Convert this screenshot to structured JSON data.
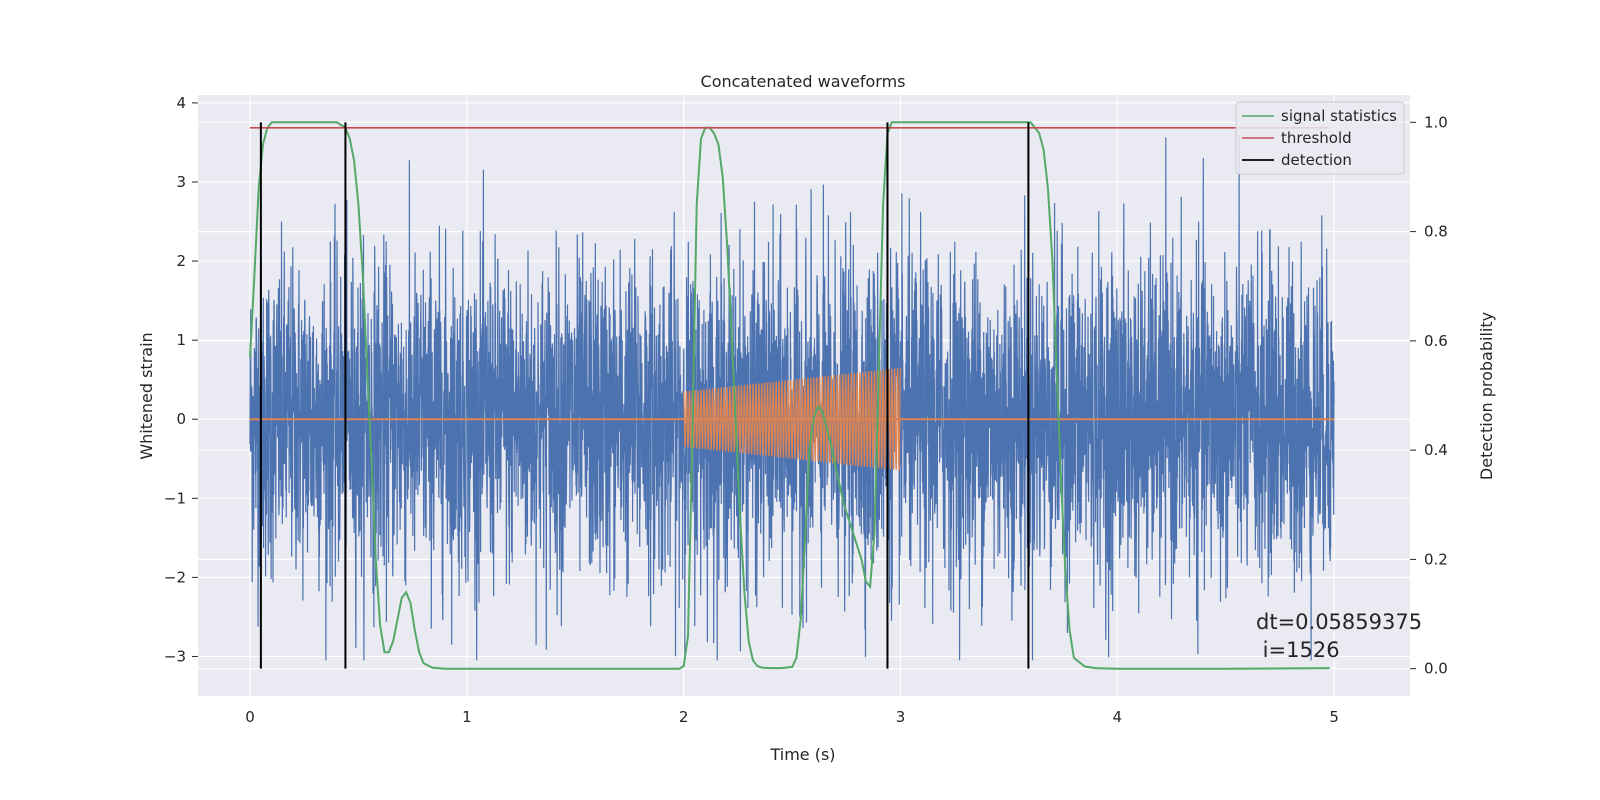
{
  "chart_data": {
    "type": "line",
    "title": "Concatenated waveforms",
    "xlabel": "Time (s)",
    "ylabel": "Whitened strain",
    "ylabel_right": "Detection probability",
    "xlim": [
      -0.24,
      5.35
    ],
    "ylim": [
      -3.5,
      4.1
    ],
    "ylim_right": [
      -0.05,
      1.05
    ],
    "x_ticks": [
      0,
      1,
      2,
      3,
      4,
      5
    ],
    "x_tick_labels": [
      "0",
      "1",
      "2",
      "3",
      "4",
      "5"
    ],
    "y_ticks": [
      -3,
      -2,
      -1,
      0,
      1,
      2,
      3,
      4
    ],
    "y_tick_labels": [
      "−3",
      "−2",
      "−1",
      "0",
      "1",
      "2",
      "3",
      "4"
    ],
    "y2_ticks": [
      0.0,
      0.2,
      0.4,
      0.6,
      0.8,
      1.0
    ],
    "y2_tick_labels": [
      "0.0",
      "0.2",
      "0.4",
      "0.6",
      "0.8",
      "1.0"
    ],
    "grid": true,
    "legend_position": "upper-right",
    "colors": {
      "background": "#EAEAF2",
      "grid": "#FFFFFF",
      "strain": "#4C72B0",
      "injection": "#DD8452",
      "signal": "#55A868",
      "threshold": "#C44E52",
      "detection": "#000000"
    },
    "series": [
      {
        "name": "",
        "axis": "left",
        "kind": "noise",
        "x_range": [
          0.0,
          5.0
        ],
        "samples": 5000,
        "std": 1.0,
        "ylim_clip": [
          -3.05,
          3.8
        ]
      },
      {
        "name": "",
        "axis": "left",
        "kind": "chirp",
        "x_range": [
          2.0,
          3.0
        ],
        "amplitude_start": 0.35,
        "amplitude_end": 0.65,
        "cycles": 75,
        "baseline_x_range": [
          0.0,
          5.0
        ],
        "baseline_y": 0.0
      },
      {
        "name": "signal statistics",
        "axis": "right",
        "x": [
          0.0,
          0.02,
          0.04,
          0.06,
          0.08,
          0.1,
          0.14,
          0.2,
          0.3,
          0.4,
          0.44,
          0.46,
          0.48,
          0.5,
          0.52,
          0.54,
          0.56,
          0.58,
          0.6,
          0.62,
          0.64,
          0.66,
          0.68,
          0.7,
          0.72,
          0.74,
          0.76,
          0.78,
          0.8,
          0.84,
          0.9,
          1.0,
          1.5,
          1.98,
          2.0,
          2.02,
          2.04,
          2.06,
          2.08,
          2.1,
          2.12,
          2.14,
          2.16,
          2.18,
          2.2,
          2.22,
          2.24,
          2.26,
          2.28,
          2.3,
          2.32,
          2.34,
          2.36,
          2.4,
          2.45,
          2.5,
          2.52,
          2.54,
          2.56,
          2.58,
          2.6,
          2.62,
          2.64,
          2.66,
          2.68,
          2.7,
          2.74,
          2.78,
          2.82,
          2.84,
          2.86,
          2.88,
          2.9,
          2.92,
          2.94,
          2.96,
          3.0,
          3.2,
          3.4,
          3.55,
          3.6,
          3.62,
          3.64,
          3.66,
          3.68,
          3.7,
          3.72,
          3.74,
          3.76,
          3.78,
          3.8,
          3.85,
          3.9,
          4.0,
          4.5,
          4.98
        ],
        "values": [
          0.57,
          0.72,
          0.88,
          0.96,
          0.99,
          1.0,
          1.0,
          1.0,
          1.0,
          1.0,
          0.99,
          0.97,
          0.93,
          0.85,
          0.72,
          0.55,
          0.38,
          0.2,
          0.08,
          0.03,
          0.03,
          0.05,
          0.09,
          0.13,
          0.14,
          0.12,
          0.07,
          0.03,
          0.01,
          0.002,
          0.0,
          0.0,
          0.0,
          0.0,
          0.005,
          0.06,
          0.42,
          0.85,
          0.97,
          0.99,
          0.99,
          0.98,
          0.96,
          0.9,
          0.78,
          0.62,
          0.45,
          0.28,
          0.14,
          0.05,
          0.015,
          0.005,
          0.002,
          0.001,
          0.001,
          0.003,
          0.02,
          0.09,
          0.24,
          0.4,
          0.46,
          0.48,
          0.47,
          0.44,
          0.41,
          0.37,
          0.3,
          0.25,
          0.2,
          0.16,
          0.15,
          0.25,
          0.55,
          0.85,
          0.98,
          1.0,
          1.0,
          1.0,
          1.0,
          1.0,
          1.0,
          0.99,
          0.98,
          0.95,
          0.88,
          0.75,
          0.55,
          0.35,
          0.18,
          0.07,
          0.02,
          0.004,
          0.001,
          0.0,
          0.0,
          0.001
        ]
      },
      {
        "name": "threshold",
        "axis": "right",
        "x": [
          0.0,
          4.98
        ],
        "values": [
          0.99,
          0.99
        ]
      },
      {
        "name": "detection",
        "axis": "right",
        "kind": "vlines",
        "x": [
          0.05,
          0.44,
          2.94,
          3.59
        ],
        "y_range": [
          0.0,
          1.0
        ]
      }
    ],
    "annotation": {
      "line1": "dt=0.05859375",
      "line2": " i=1526",
      "position": "lower-right"
    }
  }
}
